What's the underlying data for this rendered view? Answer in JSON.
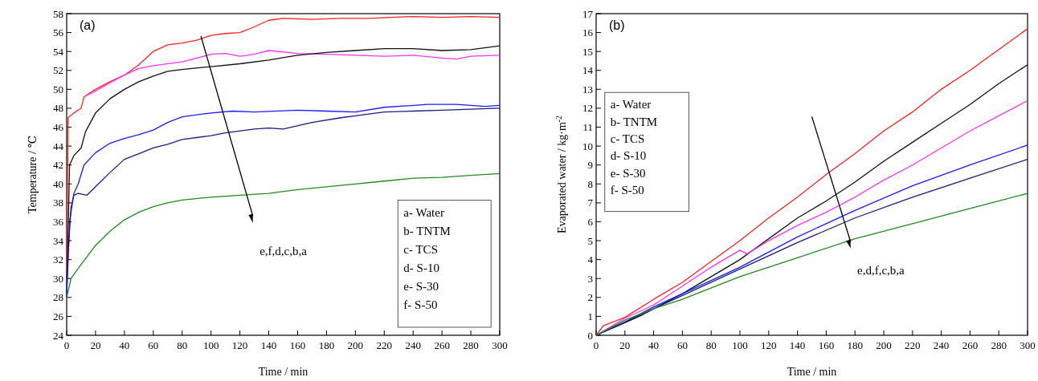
{
  "chart_data": [
    {
      "type": "line",
      "xlabel": "Time / min",
      "ylabel": "Temperature / ℃",
      "xlim": [
        0,
        300
      ],
      "xticks": [
        0,
        20,
        40,
        60,
        80,
        100,
        120,
        140,
        160,
        180,
        200,
        220,
        240,
        260,
        280,
        300
      ],
      "ylim": [
        24,
        58
      ],
      "yticks": [
        24,
        26,
        28,
        30,
        32,
        34,
        36,
        38,
        40,
        42,
        44,
        46,
        48,
        50,
        52,
        54,
        56,
        58
      ],
      "annotations": [
        "(a)",
        "e,f,d,c,b,a",
        "a- Water",
        "b- TNTM",
        "c- TCS",
        "d- S-10",
        "e- S-30",
        "f- S-50"
      ],
      "series": [
        {
          "color": "#ff2020",
          "x": [
            0,
            1,
            5,
            10,
            12,
            20,
            30,
            40,
            50,
            60,
            70,
            80,
            90,
            100,
            110,
            120,
            130,
            140,
            150,
            170,
            190,
            210,
            240,
            260,
            280,
            300
          ],
          "values": [
            30,
            47,
            47.5,
            48,
            49.2,
            50,
            50.8,
            51.5,
            52.6,
            54,
            54.7,
            54.9,
            55.2,
            55.7,
            55.9,
            56,
            56.6,
            57.3,
            57.5,
            57.4,
            57.5,
            57.5,
            57.7,
            57.6,
            57.7,
            57.6
          ]
        },
        {
          "color": "#ff30ff",
          "x": [
            12,
            20,
            30,
            40,
            50,
            60,
            80,
            100,
            110,
            120,
            130,
            140,
            160,
            180,
            200,
            220,
            240,
            260,
            270,
            280,
            300
          ],
          "values": [
            49.2,
            49.8,
            50.7,
            51.5,
            52.2,
            52.5,
            52.9,
            53.7,
            53.8,
            53.5,
            53.7,
            54.1,
            53.8,
            53.7,
            53.6,
            53.5,
            53.6,
            53.3,
            53.2,
            53.5,
            53.6
          ]
        },
        {
          "color": "#111111",
          "x": [
            0,
            2,
            5,
            10,
            13,
            20,
            30,
            40,
            50,
            60,
            70,
            80,
            100,
            120,
            140,
            160,
            180,
            200,
            220,
            240,
            260,
            280,
            300
          ],
          "values": [
            28,
            42,
            43,
            43.8,
            45.5,
            47.5,
            49,
            50,
            50.8,
            51.4,
            51.9,
            52.1,
            52.4,
            52.7,
            53.1,
            53.6,
            53.9,
            54.1,
            54.3,
            54.3,
            54.1,
            54.2,
            54.6
          ]
        },
        {
          "color": "#1a1aff",
          "x": [
            0,
            2,
            5,
            8,
            12,
            20,
            30,
            40,
            50,
            60,
            70,
            80,
            100,
            115,
            130,
            160,
            180,
            200,
            220,
            250,
            270,
            290,
            300
          ],
          "values": [
            28,
            36,
            39,
            40,
            42,
            43.3,
            44.3,
            44.8,
            45.2,
            45.7,
            46.5,
            47.1,
            47.5,
            47.7,
            47.6,
            47.8,
            47.7,
            47.6,
            48.1,
            48.4,
            48.4,
            48.2,
            48.3
          ]
        },
        {
          "color": "#1a1a80",
          "x": [
            0,
            3,
            5,
            8,
            14,
            20,
            30,
            40,
            50,
            60,
            70,
            80,
            100,
            110,
            130,
            140,
            150,
            170,
            190,
            200,
            220,
            240,
            260,
            280,
            300
          ],
          "values": [
            30,
            37.5,
            38.8,
            39,
            38.8,
            39.7,
            41.2,
            42.6,
            43.2,
            43.8,
            44.2,
            44.7,
            45.1,
            45.4,
            45.8,
            45.9,
            45.8,
            46.5,
            47,
            47.2,
            47.6,
            47.7,
            47.8,
            47.9,
            48
          ]
        },
        {
          "color": "#1f8a1f",
          "x": [
            0,
            3,
            10,
            20,
            30,
            40,
            50,
            60,
            70,
            80,
            100,
            120,
            140,
            160,
            180,
            200,
            220,
            240,
            260,
            280,
            300
          ],
          "values": [
            28,
            30,
            31.5,
            33.5,
            35,
            36.2,
            37,
            37.6,
            38,
            38.3,
            38.6,
            38.8,
            39,
            39.4,
            39.7,
            40,
            40.3,
            40.6,
            40.7,
            40.9,
            41.1
          ]
        }
      ]
    },
    {
      "type": "line",
      "xlabel": "Time / min",
      "ylabel": "Evaporated water / kg·m$^{-2}$",
      "xlim": [
        0,
        300
      ],
      "xticks": [
        0,
        20,
        40,
        60,
        80,
        100,
        120,
        140,
        160,
        180,
        200,
        220,
        240,
        260,
        280,
        300
      ],
      "ylim": [
        0,
        17
      ],
      "yticks": [
        0,
        1,
        2,
        3,
        4,
        5,
        6,
        7,
        8,
        9,
        10,
        11,
        12,
        13,
        14,
        15,
        16,
        17
      ],
      "annotations": [
        "(b)",
        "e,d,f,c,b,a",
        "a- Water",
        "b- TNTM",
        "c- TCS",
        "d- S-10",
        "e- S-30",
        "f- S-50"
      ],
      "series": [
        {
          "color": "#ff2020",
          "x": [
            0,
            5,
            20,
            40,
            60,
            80,
            100,
            120,
            140,
            160,
            180,
            200,
            220,
            240,
            260,
            280,
            300
          ],
          "values": [
            0,
            0.5,
            0.95,
            1.9,
            2.8,
            3.9,
            5,
            6.2,
            7.3,
            8.5,
            9.6,
            10.8,
            11.8,
            13,
            14,
            15.1,
            16.2
          ]
        },
        {
          "color": "#111111",
          "x": [
            0,
            30,
            60,
            100,
            140,
            160,
            180,
            200,
            220,
            240,
            260,
            280,
            300
          ],
          "values": [
            0,
            1,
            2.2,
            4,
            6.2,
            7.1,
            8.1,
            9.2,
            10.2,
            11.2,
            12.2,
            13.3,
            14.3
          ]
        },
        {
          "color": "#ff30ff",
          "x": [
            0,
            20,
            40,
            60,
            80,
            100,
            105,
            120,
            140,
            160,
            180,
            200,
            220,
            240,
            260,
            280,
            300
          ],
          "values": [
            0,
            0.9,
            1.6,
            2.6,
            3.6,
            4.5,
            4.3,
            5,
            5.8,
            6.5,
            7.3,
            8.2,
            9,
            9.9,
            10.8,
            11.6,
            12.4
          ]
        },
        {
          "color": "#1a1aff",
          "x": [
            0,
            20,
            40,
            60,
            100,
            140,
            180,
            220,
            260,
            300
          ],
          "values": [
            0,
            0.7,
            1.5,
            2.2,
            3.6,
            5.2,
            6.6,
            7.9,
            9,
            10.05
          ]
        },
        {
          "color": "#1a1a80",
          "x": [
            0,
            20,
            40,
            60,
            100,
            140,
            180,
            220,
            260,
            300
          ],
          "values": [
            0,
            0.7,
            1.4,
            2.1,
            3.5,
            4.9,
            6.2,
            7.3,
            8.3,
            9.3
          ]
        },
        {
          "color": "#1f8a1f",
          "x": [
            0,
            20,
            40,
            60,
            100,
            140,
            180,
            220,
            260,
            300
          ],
          "values": [
            0,
            0.8,
            1.4,
            1.9,
            3.1,
            4.1,
            5.1,
            5.9,
            6.7,
            7.5
          ]
        }
      ]
    }
  ]
}
